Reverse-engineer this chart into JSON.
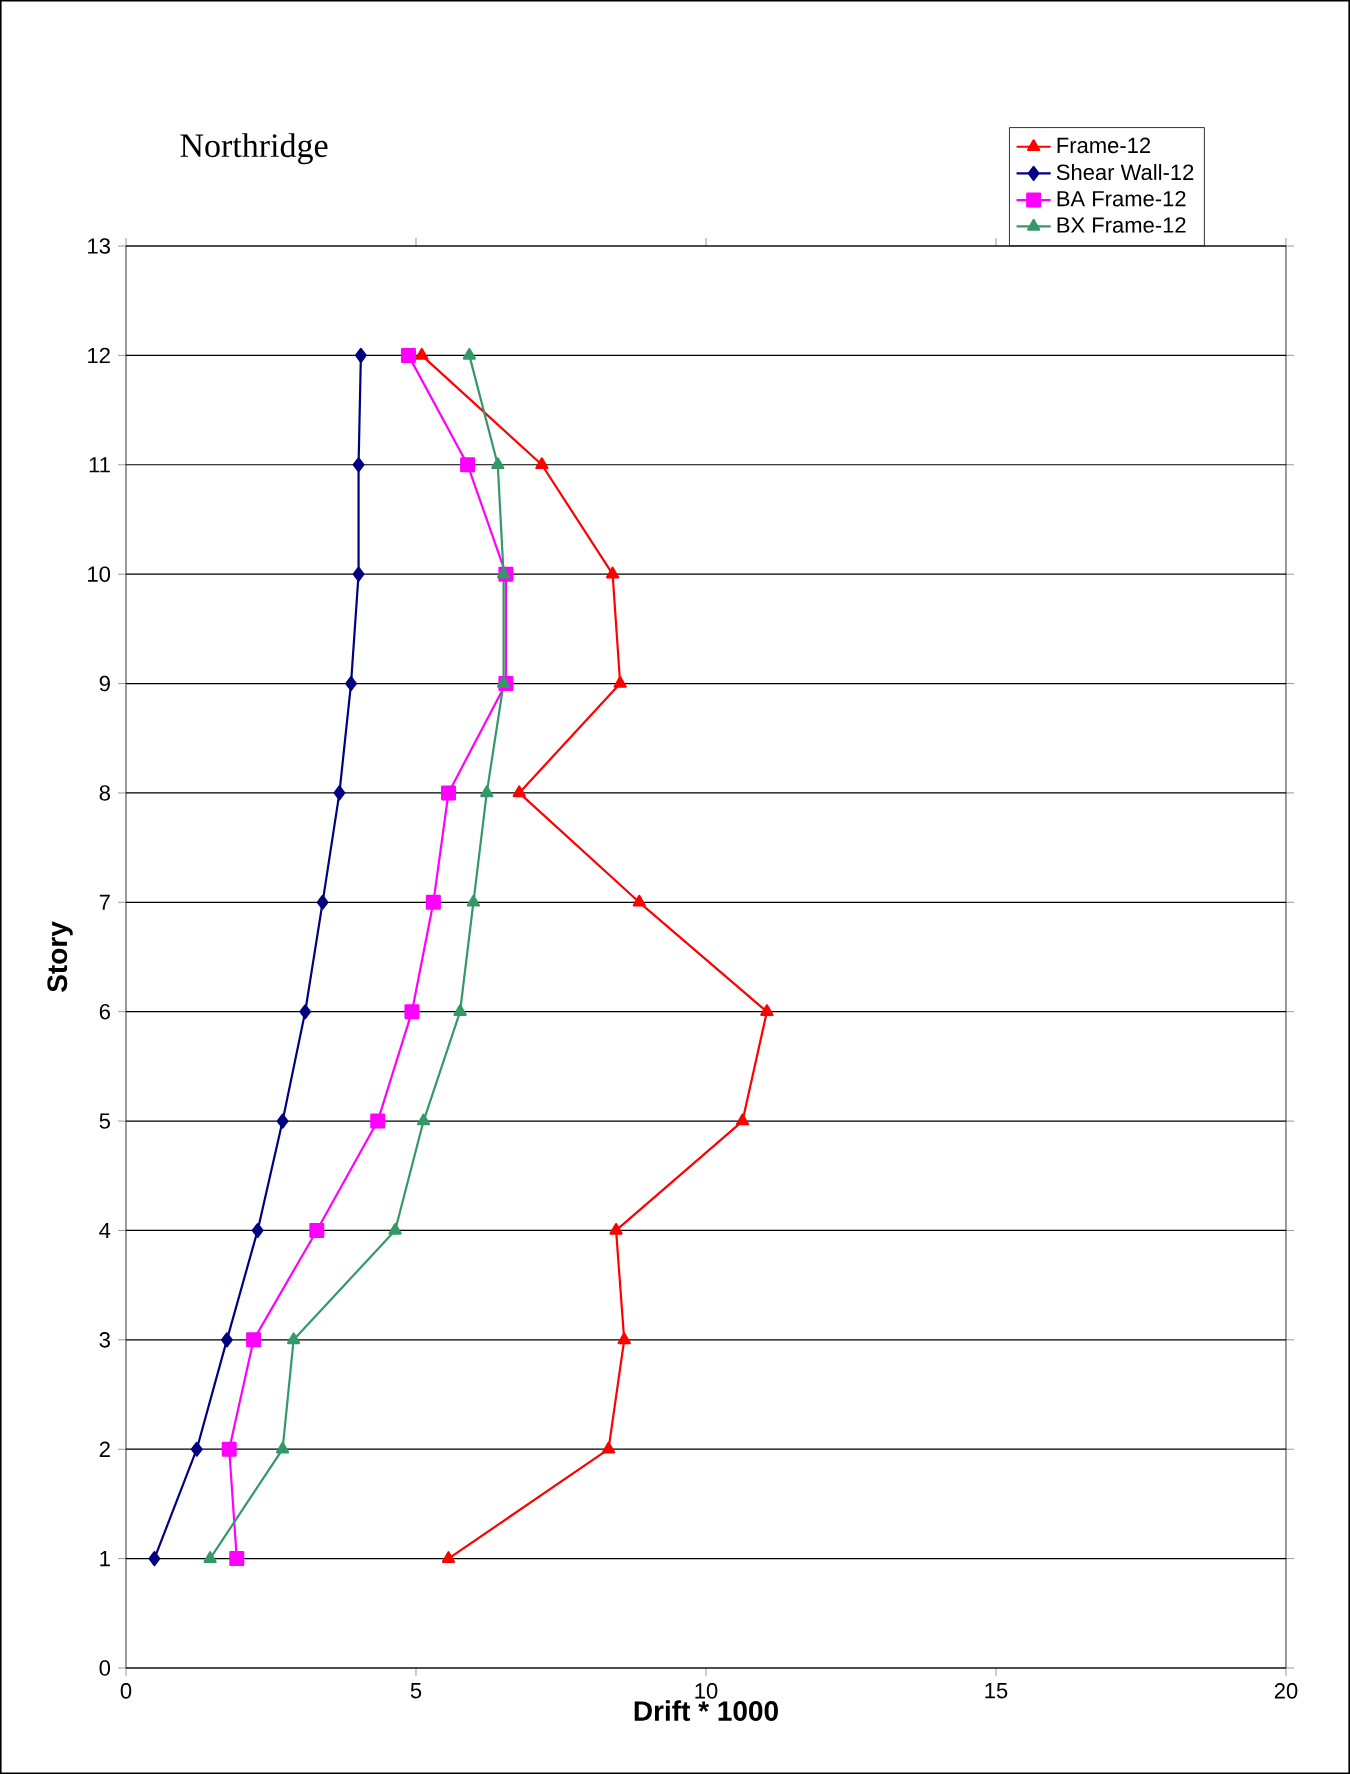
{
  "chart_data": {
    "type": "line",
    "title": "Northridge",
    "xlabel": "Drift * 1000",
    "ylabel": "Story",
    "xlim": [
      0,
      20
    ],
    "xticks": [
      0,
      5,
      10,
      15,
      20
    ],
    "ylim": [
      0,
      13
    ],
    "yticks": [
      0,
      1,
      2,
      3,
      4,
      5,
      6,
      7,
      8,
      9,
      10,
      11,
      12,
      13
    ],
    "grid": "y",
    "legend": "top right",
    "line_style": "solid",
    "series": [
      {
        "name": "Frame-12",
        "color": "#ff0000",
        "marker": "triangle",
        "x": [
          5.56,
          8.32,
          8.59,
          8.45,
          10.63,
          11.05,
          8.85,
          6.78,
          8.52,
          8.39,
          7.17,
          5.1
        ],
        "values": [
          1,
          2,
          3,
          4,
          5,
          6,
          7,
          8,
          9,
          10,
          11,
          12
        ]
      },
      {
        "name": "Shear Wall-12",
        "color": "#000080",
        "marker": "diamond",
        "x": [
          0.49,
          1.22,
          1.74,
          2.27,
          2.7,
          3.09,
          3.39,
          3.68,
          3.88,
          4.01,
          4.01,
          4.05
        ],
        "values": [
          1,
          2,
          3,
          4,
          5,
          6,
          7,
          8,
          9,
          10,
          11,
          12
        ]
      },
      {
        "name": "BA Frame-12",
        "color": "#ff00ff",
        "marker": "square",
        "x": [
          1.91,
          1.78,
          2.2,
          3.29,
          4.34,
          4.93,
          5.3,
          5.56,
          6.55,
          6.55,
          5.89,
          4.87
        ],
        "values": [
          1,
          2,
          3,
          4,
          5,
          6,
          7,
          8,
          9,
          10,
          11,
          12
        ]
      },
      {
        "name": "BX Frame-12",
        "color": "#339966",
        "marker": "triangle",
        "x": [
          1.45,
          2.7,
          2.89,
          4.64,
          5.13,
          5.76,
          5.99,
          6.22,
          6.51,
          6.51,
          6.41,
          5.92
        ],
        "values": [
          1,
          2,
          3,
          4,
          5,
          6,
          7,
          8,
          9,
          10,
          11,
          12
        ]
      }
    ]
  }
}
